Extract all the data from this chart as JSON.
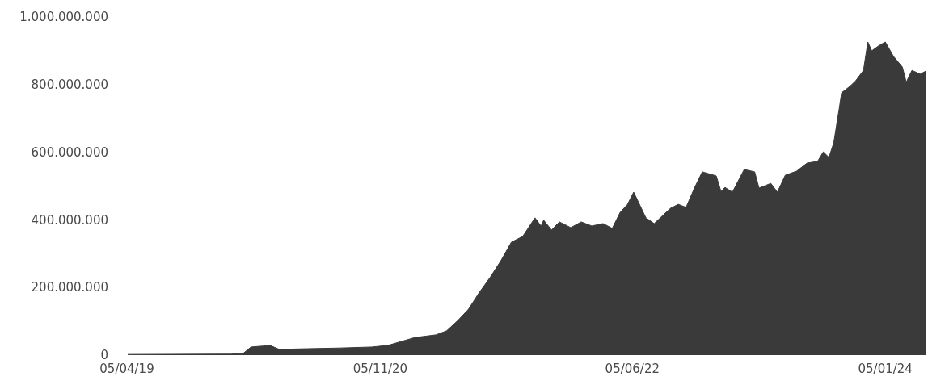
{
  "chart_data": {
    "type": "area",
    "color": "#3a3a3a",
    "x": [
      "2019-04-07",
      "2019-11-29",
      "2019-12-27",
      "2020-01-14",
      "2020-02-11",
      "2020-02-26",
      "2020-03-19",
      "2020-05-22",
      "2020-08-04",
      "2020-10-17",
      "2020-11-23",
      "2021-01-23",
      "2021-03-13",
      "2021-04-06",
      "2021-05-02",
      "2021-05-26",
      "2021-06-19",
      "2021-07-15",
      "2021-08-08",
      "2021-09-01",
      "2021-09-27",
      "2021-10-25",
      "2021-11-08",
      "2021-11-14",
      "2021-12-02",
      "2021-12-20",
      "2022-01-15",
      "2022-02-08",
      "2022-03-04",
      "2022-03-30",
      "2022-04-20",
      "2022-05-08",
      "2022-05-25",
      "2022-06-08",
      "2022-07-06",
      "2022-07-25",
      "2022-08-31",
      "2022-09-18",
      "2022-10-06",
      "2022-10-25",
      "2022-11-12",
      "2022-12-14",
      "2022-12-25",
      "2023-01-03",
      "2023-01-20",
      "2023-02-16",
      "2023-03-12",
      "2023-03-22",
      "2023-04-18",
      "2023-05-03",
      "2023-05-21",
      "2023-06-16",
      "2023-07-10",
      "2023-08-03",
      "2023-08-16",
      "2023-08-29",
      "2023-09-09",
      "2023-09-22",
      "2023-09-27",
      "2023-10-16",
      "2023-10-29",
      "2023-11-16",
      "2023-11-26",
      "2023-12-05",
      "2023-12-20",
      "2024-01-05",
      "2024-01-24",
      "2024-02-13",
      "2024-02-22",
      "2024-03-06",
      "2024-03-25",
      "2024-04-07"
    ],
    "values": [
      2000000,
      3000000,
      5000000,
      24000000,
      27000000,
      29000000,
      17000000,
      19000000,
      21000000,
      24000000,
      29000000,
      52000000,
      60000000,
      72000000,
      103000000,
      136000000,
      184000000,
      231000000,
      279000000,
      334000000,
      351000000,
      406000000,
      382000000,
      399000000,
      370000000,
      394000000,
      377000000,
      394000000,
      382000000,
      389000000,
      375000000,
      422000000,
      446000000,
      482000000,
      406000000,
      389000000,
      434000000,
      446000000,
      437000000,
      494000000,
      542000000,
      530000000,
      484000000,
      496000000,
      482000000,
      549000000,
      542000000,
      494000000,
      508000000,
      482000000,
      532000000,
      544000000,
      568000000,
      573000000,
      601000000,
      585000000,
      628000000,
      733000000,
      776000000,
      795000000,
      811000000,
      842000000,
      926000000,
      900000000,
      914000000,
      926000000,
      883000000,
      852000000,
      807000000,
      842000000,
      831000000,
      840000000
    ],
    "xlim": [
      "2019-04-05",
      "2024-04-08"
    ],
    "xticks": [
      {
        "value": "2019-04-05",
        "label": "05/04/19"
      },
      {
        "value": "2020-11-05",
        "label": "05/11/20"
      },
      {
        "value": "2022-06-05",
        "label": "05/06/22"
      },
      {
        "value": "2024-01-05",
        "label": "05/01/24"
      }
    ],
    "ylim": [
      0,
      1000000000
    ],
    "yticks": [
      0,
      {
        "value": 200000000,
        "label": "200.000.000"
      },
      {
        "value": 400000000,
        "label": "400.000.000"
      },
      {
        "value": 600000000,
        "label": "600.000.000"
      },
      {
        "value": 800000000,
        "label": "800.000.000"
      },
      {
        "value": 1000000000,
        "label": "1.000.000.000"
      }
    ]
  }
}
